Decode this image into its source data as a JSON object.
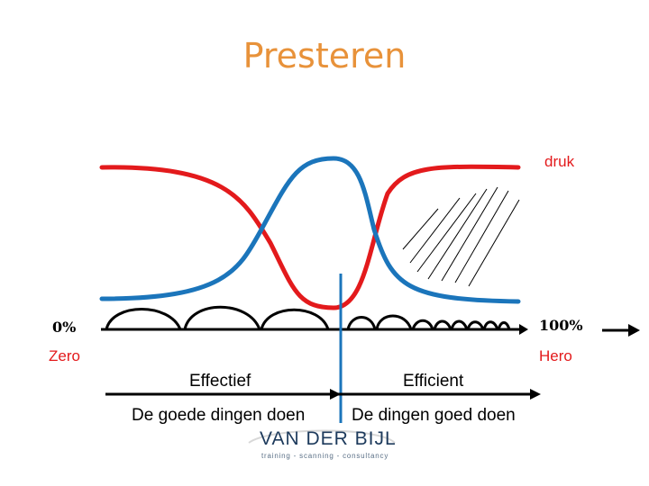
{
  "title": "Presteren",
  "labels": {
    "druk": "druk",
    "pct_left": "0%",
    "pct_right": "100%",
    "zero": "Zero",
    "hero": "Hero",
    "effectief": "Effectief",
    "efficient": "Efficient",
    "goede_dingen": "De goede dingen doen",
    "dingen_goed": "De dingen goed doen"
  },
  "logo": {
    "name": "VAN DER BIJL",
    "tagline": "training - scanning - consultancy"
  },
  "colors": {
    "title": "#e8923a",
    "pressure_curve": "#e31a1c",
    "performance_curve": "#1b75bb",
    "divider": "#1b75bb"
  }
}
